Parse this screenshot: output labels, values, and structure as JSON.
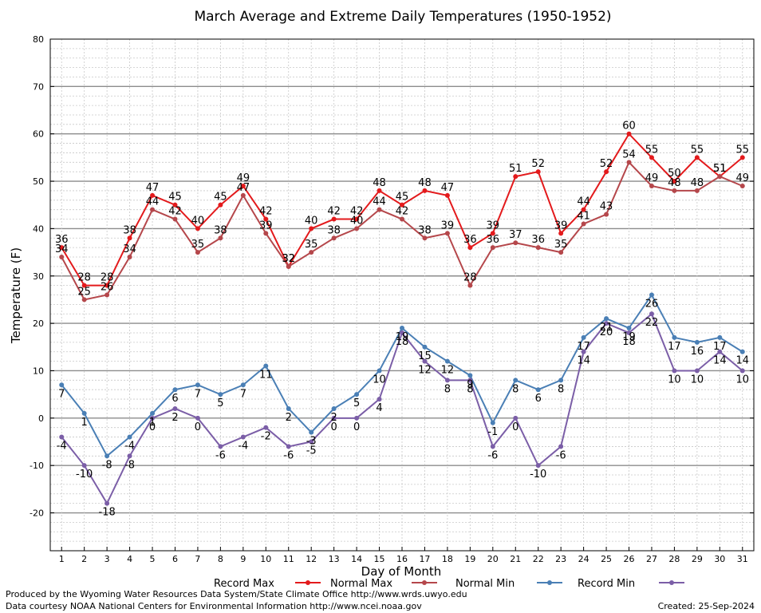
{
  "chart_data": {
    "type": "line",
    "title": "March Average and Extreme Daily Temperatures (1950-1952)",
    "xlabel": "Day of Month",
    "ylabel": "Temperature (F)",
    "ylim": [
      -28,
      80
    ],
    "yticks": [
      -20,
      -10,
      0,
      10,
      20,
      30,
      40,
      50,
      60,
      70,
      80
    ],
    "grid": true,
    "legend_position": "bottom",
    "x": [
      1,
      2,
      3,
      4,
      5,
      6,
      7,
      8,
      9,
      10,
      11,
      12,
      13,
      14,
      15,
      16,
      17,
      18,
      19,
      20,
      21,
      22,
      23,
      24,
      25,
      26,
      27,
      28,
      29,
      30,
      31
    ],
    "series": [
      {
        "name": "Record Max",
        "color": "#e31a1c",
        "values": [
          36,
          28,
          28,
          38,
          47,
          45,
          40,
          45,
          49,
          42,
          32,
          40,
          42,
          42,
          48,
          45,
          48,
          47,
          36,
          39,
          51,
          52,
          39,
          44,
          52,
          60,
          55,
          50,
          55,
          51,
          55
        ]
      },
      {
        "name": "Normal Max",
        "color": "#b5474b",
        "values": [
          34,
          25,
          26,
          34,
          44,
          42,
          35,
          38,
          47,
          39,
          32,
          35,
          38,
          40,
          44,
          42,
          38,
          39,
          28,
          36,
          37,
          36,
          35,
          41,
          43,
          54,
          49,
          48,
          48,
          51,
          49
        ]
      },
      {
        "name": "Normal Min",
        "color": "#4a7fb5",
        "values": [
          7,
          1,
          -8,
          -4,
          1,
          6,
          7,
          5,
          7,
          11,
          2,
          -3,
          2,
          5,
          10,
          19,
          15,
          12,
          9,
          -1,
          8,
          6,
          8,
          17,
          21,
          19,
          26,
          17,
          16,
          17,
          14
        ]
      },
      {
        "name": "Record Min",
        "color": "#7b5ea7",
        "values": [
          -4,
          -10,
          -18,
          -8,
          0,
          2,
          0,
          -6,
          -4,
          -2,
          -6,
          -5,
          0,
          0,
          4,
          18,
          12,
          8,
          8,
          -6,
          0,
          -10,
          -6,
          14,
          20,
          18,
          22,
          10,
          10,
          14,
          10
        ]
      }
    ]
  },
  "footer": {
    "produced_by": "Produced by the Wyoming Water Resources Data System/State Climate Office http://www.wrds.uwyo.edu",
    "data_courtesy": "Data courtesy NOAA National Centers for Environmental Information http://www.ncei.noaa.gov",
    "created": "Created:  25-Sep-2024"
  }
}
